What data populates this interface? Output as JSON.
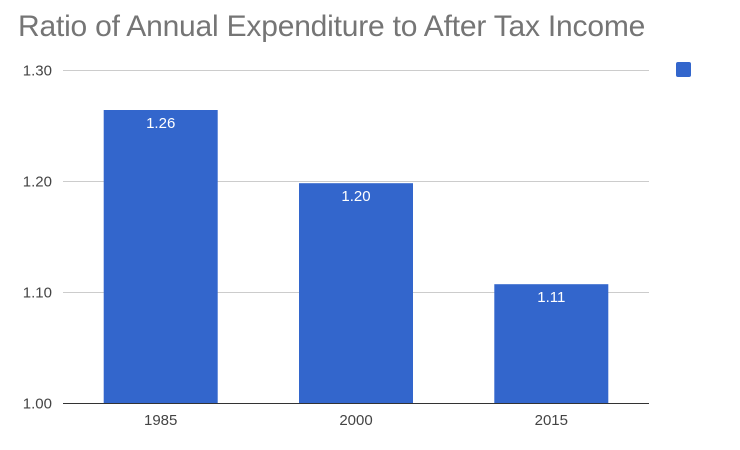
{
  "chart_data": {
    "type": "bar",
    "title": "Ratio of Annual Expenditure to After Tax Income",
    "categories": [
      "1985",
      "2000",
      "2015"
    ],
    "values": [
      1.264,
      1.198,
      1.107
    ],
    "data_labels": [
      "1.26",
      "1.20",
      "1.11"
    ],
    "series_name": "",
    "xlabel": "",
    "ylabel": "",
    "ylim": [
      1.0,
      1.3
    ],
    "yticks": [
      1.0,
      1.1,
      1.2,
      1.3
    ],
    "ytick_labels": [
      "1.00",
      "1.10",
      "1.20",
      "1.30"
    ],
    "grid": true,
    "legend_position": "top-right"
  },
  "colors": {
    "bar": "#3366cc",
    "grid": "#cccccc",
    "baseline": "#333333"
  }
}
